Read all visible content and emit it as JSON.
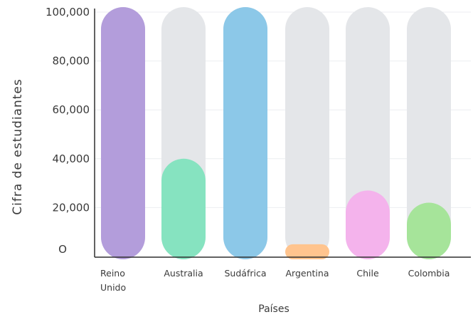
{
  "chart_data": {
    "type": "bar",
    "title": "",
    "xlabel": "Países",
    "ylabel": "Cifra de estudiantes",
    "ylim": [
      0,
      100000
    ],
    "y_ticks": [
      {
        "value": 0,
        "label": "O"
      },
      {
        "value": 20000,
        "label": "20,000"
      },
      {
        "value": 40000,
        "label": "40,000"
      },
      {
        "value": 60000,
        "label": "60,000"
      },
      {
        "value": 80000,
        "label": "80,000"
      },
      {
        "value": 100000,
        "label": "100,000"
      }
    ],
    "categories": [
      [
        "Reino",
        "Unido"
      ],
      [
        "Australia"
      ],
      [
        "Sudáfrica"
      ],
      [
        "Argentina"
      ],
      [
        "Chile"
      ],
      [
        "Colombia"
      ]
    ],
    "values": [
      100000,
      40000,
      100000,
      5000,
      27000,
      22000
    ],
    "colors": [
      "#b39ddb",
      "#86e3c0",
      "#8cc8e8",
      "#ffc48e",
      "#f4b3ec",
      "#a6e49a"
    ],
    "track_color": "#e4e6e9",
    "grid": true
  }
}
